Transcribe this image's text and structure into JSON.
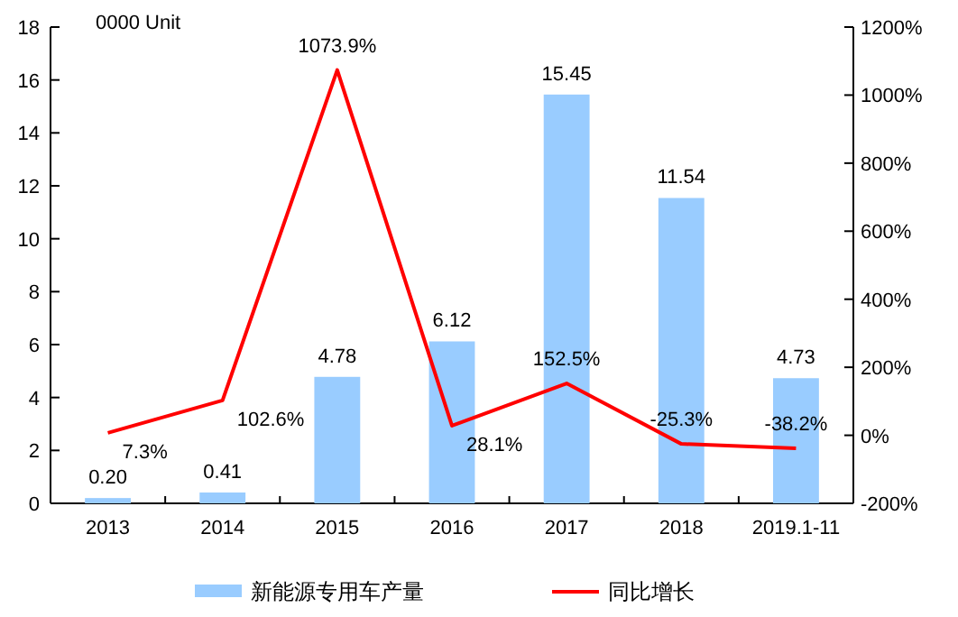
{
  "chart_data": {
    "type": "bar",
    "ylabel": "0000 Unit",
    "categories": [
      "2013",
      "2014",
      "2015",
      "2016",
      "2017",
      "2018",
      "2019.1-11"
    ],
    "series": [
      {
        "name": "新能源专用车产量",
        "color": "#99ccff",
        "values": [
          0.2,
          0.41,
          4.78,
          6.12,
          15.45,
          11.54,
          4.73
        ],
        "value_labels": [
          "0.20",
          "0.41",
          "4.78",
          "6.12",
          "15.45",
          "11.54",
          "4.73"
        ]
      },
      {
        "name": "同比增长",
        "type": "line",
        "axis": "y2",
        "color": "#ff0000",
        "values": [
          7.3,
          102.6,
          1073.9,
          28.1,
          152.5,
          -25.3,
          -38.2
        ],
        "value_labels": [
          "7.3%",
          "102.6%",
          "1073.9%",
          "28.1%",
          "152.5%",
          "-25.3%",
          "-38.2%"
        ]
      }
    ],
    "ylim": [
      0,
      18
    ],
    "yticks": [
      0,
      2,
      4,
      6,
      8,
      10,
      12,
      14,
      16,
      18
    ],
    "y2lim": [
      -200,
      1200
    ],
    "y2ticks": [
      {
        "value": -200,
        "label": "-200%"
      },
      {
        "value": 0,
        "label": "0%"
      },
      {
        "value": 200,
        "label": "200%"
      },
      {
        "value": 400,
        "label": "400%"
      },
      {
        "value": 600,
        "label": "600%"
      },
      {
        "value": 800,
        "label": "800%"
      },
      {
        "value": 1000,
        "label": "1000%"
      },
      {
        "value": 1200,
        "label": "1200%"
      }
    ],
    "legend": "bottom",
    "grid": false
  }
}
